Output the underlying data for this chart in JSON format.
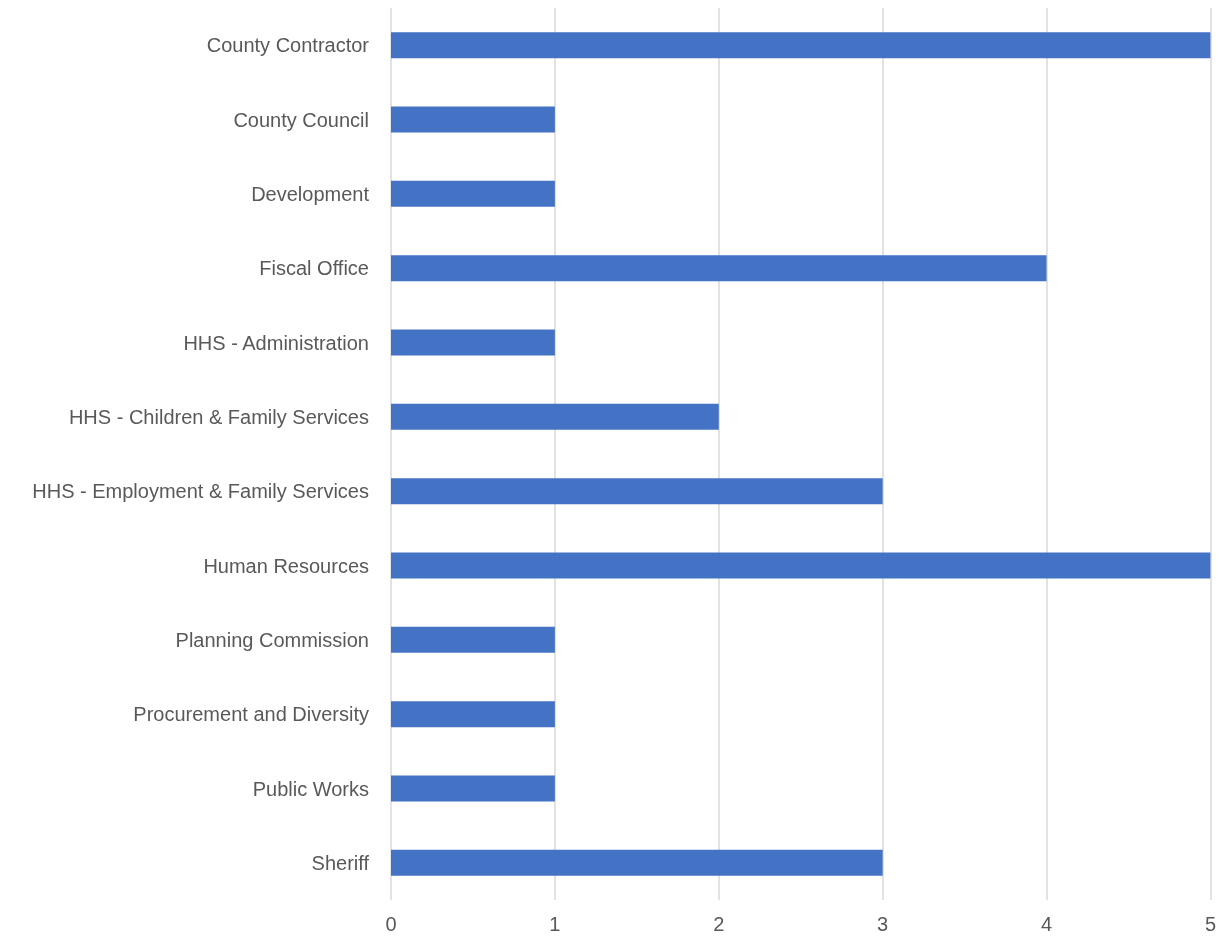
{
  "chart_data": {
    "type": "bar",
    "orientation": "horizontal",
    "categories": [
      "County Contractor",
      "County Council",
      "Development",
      "Fiscal Office",
      "HHS - Administration",
      "HHS - Children & Family Services",
      "HHS - Employment & Family Services",
      "Human Resources",
      "Planning Commission",
      "Procurement and Diversity",
      "Public Works",
      "Sheriff"
    ],
    "values": [
      5,
      1,
      1,
      4,
      1,
      2,
      3,
      5,
      1,
      1,
      1,
      3
    ],
    "color": "#4472c4",
    "xlim": [
      0,
      5
    ],
    "xticks": [
      0,
      1,
      2,
      3,
      4,
      5
    ],
    "grid": "x"
  }
}
